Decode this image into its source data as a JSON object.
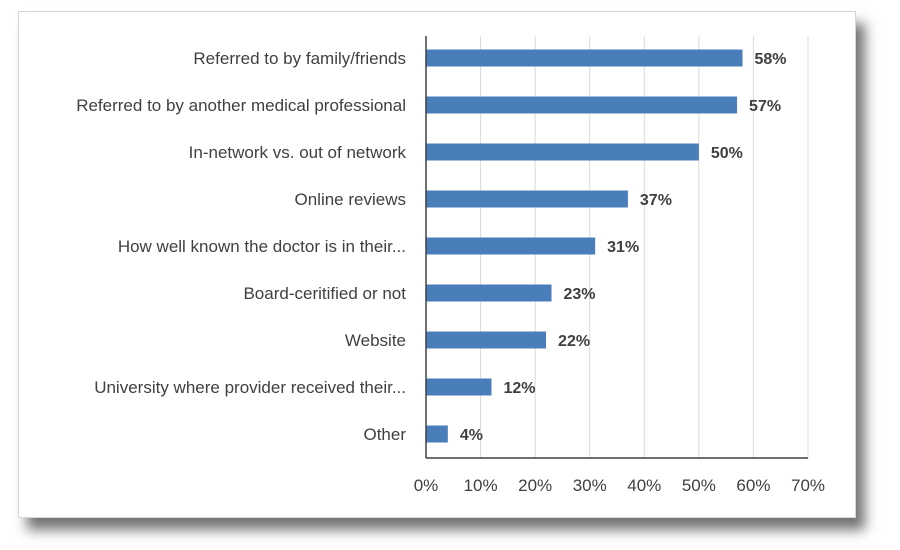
{
  "chart_data": {
    "type": "bar",
    "orientation": "horizontal",
    "categories": [
      "Referred to by family/friends",
      "Referred to by another medical professional",
      "In-network vs. out of network",
      "Online reviews",
      "How well known the doctor is in their...",
      "Board-ceritified or not",
      "Website",
      "University where provider received their...",
      "Other"
    ],
    "values": [
      58,
      57,
      50,
      37,
      31,
      23,
      22,
      12,
      4
    ],
    "data_labels": [
      "58%",
      "57%",
      "50%",
      "37%",
      "31%",
      "23%",
      "22%",
      "12%",
      "4%"
    ],
    "xlim": [
      0,
      70
    ],
    "x_ticks": [
      0,
      10,
      20,
      30,
      40,
      50,
      60,
      70
    ],
    "x_tick_labels": [
      "0%",
      "10%",
      "20%",
      "30%",
      "40%",
      "50%",
      "60%",
      "70%"
    ],
    "grid": "vertical",
    "legend": "none",
    "colors": {
      "bar": "#4a7ebb",
      "grid": "#d9d9d9",
      "axis": "#404040",
      "text": "#404040"
    }
  }
}
